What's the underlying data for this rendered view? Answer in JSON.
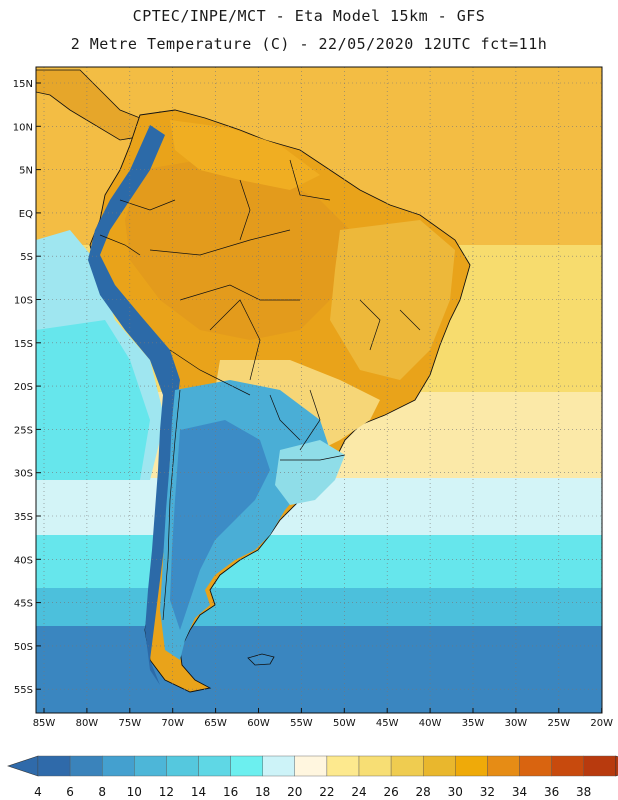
{
  "header": {
    "line1": "CPTEC/INPE/MCT -  Eta Model 15km - GFS",
    "line2": "2 Metre Temperature (C) - 22/05/2020 12UTC fct=11h"
  },
  "axes": {
    "lat_labels": [
      "15N",
      "10N",
      "5N",
      "EQ",
      "5S",
      "10S",
      "15S",
      "20S",
      "25S",
      "30S",
      "35S",
      "40S",
      "45S",
      "50S",
      "55S"
    ],
    "lon_labels": [
      "85W",
      "80W",
      "75W",
      "70W",
      "65W",
      "60W",
      "55W",
      "50W",
      "45W",
      "40W",
      "35W",
      "30W",
      "25W",
      "20W"
    ]
  },
  "colorbar": {
    "labels": [
      "4",
      "6",
      "8",
      "10",
      "12",
      "14",
      "16",
      "18",
      "20",
      "22",
      "24",
      "26",
      "28",
      "30",
      "32",
      "34",
      "36",
      "38"
    ],
    "colors": [
      "#2f6aaa",
      "#3a83bb",
      "#44a0cf",
      "#4db6d8",
      "#55c8de",
      "#5fd7e5",
      "#6cefef",
      "#cdf3f8",
      "#fff6df",
      "#fde98e",
      "#f7de74",
      "#efcc50",
      "#e9b72d",
      "#efaa09",
      "#e68c15",
      "#d96410",
      "#c84a0d",
      "#b83a0e"
    ],
    "min_arrow_color": "#2f6aaa",
    "max_arrow_color": "#b23a10"
  },
  "regions": [
    {
      "name": "ocean-north-warm",
      "color": "#f5c24a"
    },
    {
      "name": "ocean-subtropical",
      "color": "#f7de74"
    },
    {
      "name": "ocean-mid",
      "color": "#fef2c8"
    },
    {
      "name": "ocean-cool",
      "color": "#6cefef"
    },
    {
      "name": "ocean-south",
      "color": "#3d8cc4"
    },
    {
      "name": "amazon-hot",
      "color": "#e9a31a"
    },
    {
      "name": "andes-cold",
      "color": "#2c6aa8"
    },
    {
      "name": "southern-cone",
      "color": "#45a8d4"
    }
  ]
}
